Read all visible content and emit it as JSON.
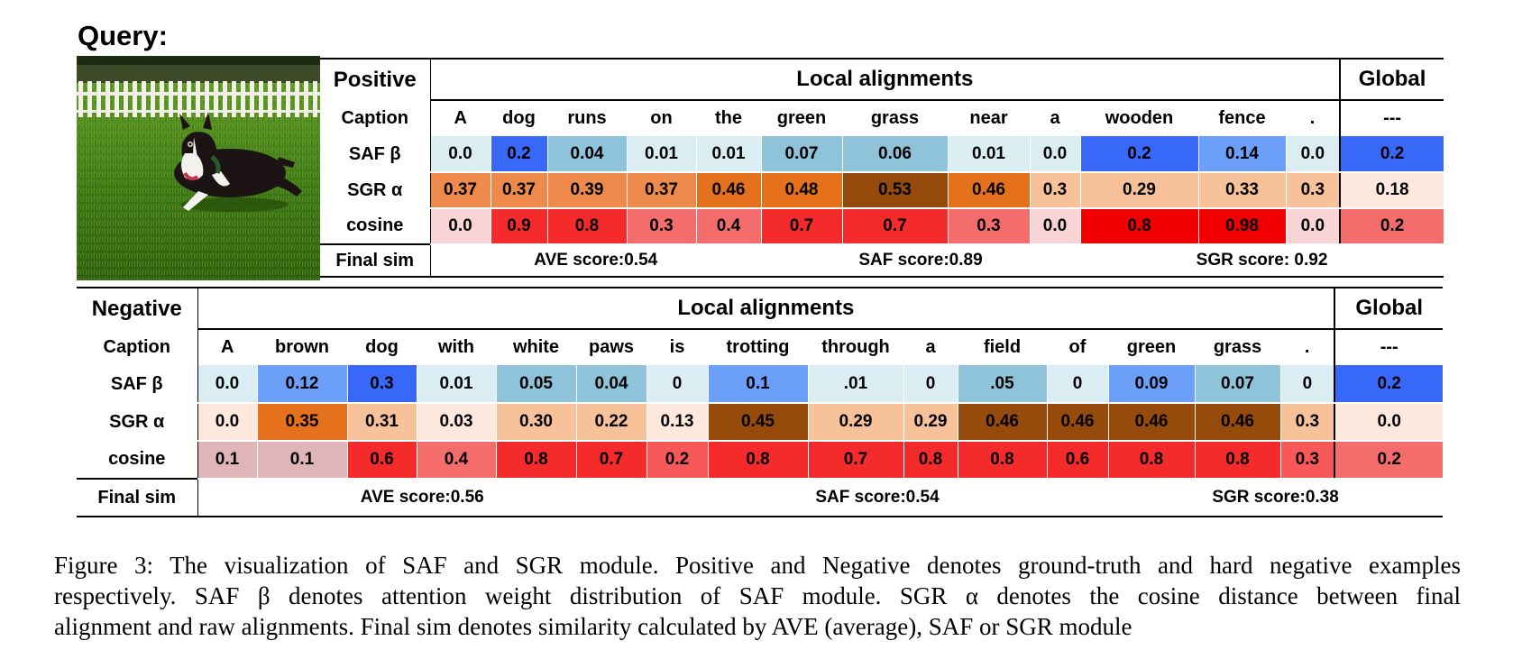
{
  "query_title": "Query:",
  "colors": {
    "saf": [
      "#d9edf2",
      "#a9d2dc",
      "#8fc3d9",
      "#6c9ff8",
      "#3f6ffc",
      "#3868f8"
    ],
    "sgr": [
      "#fce8dc",
      "#f7c29a",
      "#f2a46e",
      "#ed8a4c",
      "#e6711c",
      "#964a0c"
    ],
    "cos": [
      "#e0b5b8",
      "#f8d4d4",
      "#f46c6c",
      "#f95858",
      "#f52a2a",
      "#f00000"
    ]
  },
  "positive": {
    "header": "Positive",
    "local_header": "Local alignments",
    "global_header": "Global",
    "caption_label": "Caption",
    "words": [
      "A",
      "dog",
      "runs",
      "on",
      "the",
      "green",
      "grass",
      "near",
      "a",
      "wooden",
      "fence",
      "."
    ],
    "global_word": "---",
    "rows": [
      {
        "label": "SAF β",
        "kind": "saf",
        "values": [
          "0.0",
          "0.2",
          "0.04",
          "0.01",
          "0.01",
          "0.07",
          "0.06",
          "0.01",
          "0.0",
          "0.2",
          "0.14",
          "0.0"
        ],
        "levels": [
          0,
          5,
          2,
          0,
          0,
          2,
          2,
          0,
          0,
          5,
          3,
          0
        ],
        "global": "0.2",
        "global_level": 5
      },
      {
        "label": "SGR α",
        "kind": "sgr",
        "values": [
          "0.37",
          "0.37",
          "0.39",
          "0.37",
          "0.46",
          "0.48",
          "0.53",
          "0.46",
          "0.3",
          "0.29",
          "0.33",
          "0.3"
        ],
        "levels": [
          3,
          3,
          3,
          3,
          4,
          4,
          5,
          4,
          1,
          1,
          1,
          1
        ],
        "global": "0.18",
        "global_level": 0
      },
      {
        "label": "cosine",
        "kind": "cos",
        "values": [
          "0.0",
          "0.9",
          "0.8",
          "0.3",
          "0.4",
          "0.7",
          "0.7",
          "0.3",
          "0.0",
          "0.8",
          "0.98",
          "0.0"
        ],
        "levels": [
          1,
          4,
          4,
          2,
          2,
          4,
          4,
          2,
          1,
          5,
          5,
          1
        ],
        "global": "0.2",
        "global_level": 2
      }
    ],
    "final_label": "Final sim",
    "scores": [
      "AVE score:0.54",
      "SAF score:0.89",
      "SGR score: 0.92"
    ]
  },
  "negative": {
    "header": "Negative",
    "local_header": "Local alignments",
    "global_header": "Global",
    "caption_label": "Caption",
    "words": [
      "A",
      "brown",
      "dog",
      "with",
      "white",
      "paws",
      "is",
      "trotting",
      "through",
      "a",
      "field",
      "of",
      "green",
      "grass",
      "."
    ],
    "global_word": "---",
    "rows": [
      {
        "label": "SAF β",
        "kind": "saf",
        "values": [
          "0.0",
          "0.12",
          "0.3",
          "0.01",
          "0.05",
          "0.04",
          "0",
          "0.1",
          ".01",
          "0",
          ".05",
          "0",
          "0.09",
          "0.07",
          "0"
        ],
        "levels": [
          0,
          3,
          5,
          0,
          2,
          2,
          0,
          3,
          0,
          0,
          2,
          0,
          3,
          2,
          0
        ],
        "global": "0.2",
        "global_level": 5
      },
      {
        "label": "SGR α",
        "kind": "sgr",
        "values": [
          "0.0",
          "0.35",
          "0.31",
          "0.03",
          "0.30",
          "0.22",
          "0.13",
          "0.45",
          "0.29",
          "0.29",
          "0.46",
          "0.46",
          "0.46",
          "0.46",
          "0.3"
        ],
        "levels": [
          0,
          4,
          1,
          0,
          1,
          1,
          0,
          5,
          1,
          1,
          5,
          5,
          5,
          5,
          1
        ],
        "global": "0.0",
        "global_level": 0
      },
      {
        "label": "cosine",
        "kind": "cos",
        "values": [
          "0.1",
          "0.1",
          "0.6",
          "0.4",
          "0.8",
          "0.7",
          "0.2",
          "0.8",
          "0.7",
          "0.8",
          "0.8",
          "0.6",
          "0.8",
          "0.8",
          "0.3"
        ],
        "levels": [
          0,
          0,
          4,
          2,
          4,
          4,
          3,
          4,
          4,
          4,
          4,
          4,
          4,
          4,
          3
        ],
        "global": "0.2",
        "global_level": 2
      }
    ],
    "final_label": "Final  sim",
    "scores": [
      "AVE score:0.56",
      "SAF score:0.54",
      "SGR score:0.38"
    ]
  },
  "caption_lines": [
    "Figure 3: The visualization of SAF and SGR module. Positive and Negative denotes ground-truth and hard negative examples",
    "respectively. SAF β denotes attention weight distribution of SAF module. SGR α denotes the cosine distance between final",
    "alignment and raw alignments. Final sim denotes similarity calculated by AVE (average), SAF or SGR module"
  ]
}
